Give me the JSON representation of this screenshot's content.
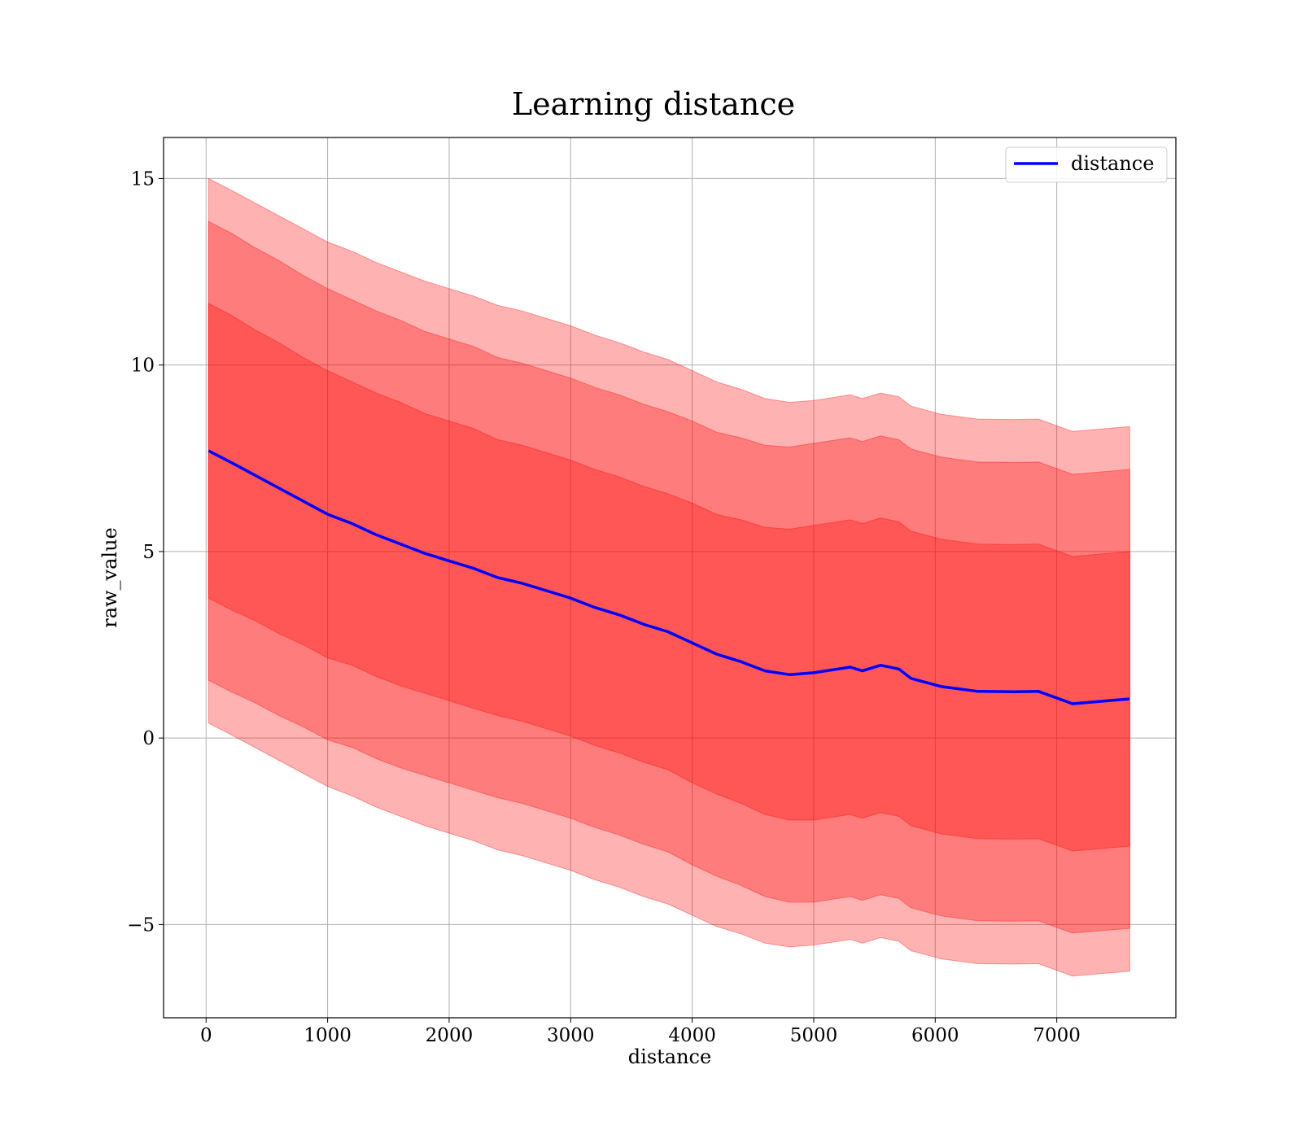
{
  "chart_data": {
    "type": "line",
    "title": "Learning distance",
    "xlabel": "distance",
    "ylabel": "raw_value",
    "xlim": [
      -350,
      7980
    ],
    "ylim": [
      -7.5,
      16.1
    ],
    "xticks": [
      0,
      1000,
      2000,
      3000,
      4000,
      5000,
      6000,
      7000
    ],
    "xtick_labels": [
      "0",
      "1000",
      "2000",
      "3000",
      "4000",
      "5000",
      "6000",
      "7000"
    ],
    "yticks": [
      -5,
      0,
      5,
      10,
      15
    ],
    "ytick_labels": [
      "−5",
      "0",
      "5",
      "10",
      "15"
    ],
    "grid": true,
    "legend": {
      "position": "top-right",
      "entries": [
        "distance"
      ]
    },
    "colors": {
      "line": "#0000ff",
      "band": "#ff0000",
      "band_alpha": 0.3
    },
    "series": [
      {
        "name": "distance",
        "x": [
          20,
          200,
          400,
          600,
          800,
          1000,
          1200,
          1400,
          1600,
          1800,
          2000,
          2200,
          2400,
          2600,
          2800,
          3000,
          3200,
          3400,
          3600,
          3800,
          4000,
          4200,
          4400,
          4600,
          4800,
          5000,
          5200,
          5300,
          5400,
          5550,
          5700,
          5800,
          6050,
          6350,
          6650,
          6850,
          7130,
          7600
        ],
        "y": [
          7.7,
          7.4,
          7.05,
          6.7,
          6.35,
          6.0,
          5.75,
          5.45,
          5.2,
          4.95,
          4.75,
          4.55,
          4.3,
          4.15,
          3.95,
          3.75,
          3.5,
          3.3,
          3.05,
          2.85,
          2.55,
          2.25,
          2.05,
          1.8,
          1.7,
          1.75,
          1.85,
          1.9,
          1.8,
          1.95,
          1.85,
          1.6,
          1.38,
          1.25,
          1.24,
          1.25,
          0.92,
          1.05
        ]
      }
    ],
    "bands": [
      {
        "k": 1,
        "offset": [
          3.95,
          3.95,
          3.9,
          3.9,
          3.85,
          3.85,
          3.8,
          3.8,
          3.8,
          3.75,
          3.75,
          3.75,
          3.7,
          3.7,
          3.7,
          3.7,
          3.7,
          3.7,
          3.7,
          3.7,
          3.75,
          3.75,
          3.8,
          3.85,
          3.9,
          3.95,
          3.95,
          3.95,
          3.95,
          3.95,
          3.95,
          3.95,
          3.95,
          3.95,
          3.95,
          3.95,
          3.95,
          3.95
        ]
      },
      {
        "k": 2,
        "offset": [
          6.15,
          6.15,
          6.1,
          6.1,
          6.05,
          6.05,
          6.0,
          6.0,
          6.0,
          5.95,
          5.95,
          5.95,
          5.9,
          5.9,
          5.9,
          5.9,
          5.9,
          5.9,
          5.9,
          5.9,
          5.95,
          5.95,
          6.0,
          6.05,
          6.1,
          6.15,
          6.15,
          6.15,
          6.15,
          6.15,
          6.15,
          6.15,
          6.15,
          6.15,
          6.15,
          6.15,
          6.15,
          6.15
        ]
      },
      {
        "k": 3,
        "offset": [
          7.3,
          7.3,
          7.3,
          7.3,
          7.3,
          7.3,
          7.3,
          7.3,
          7.3,
          7.3,
          7.3,
          7.3,
          7.3,
          7.3,
          7.3,
          7.3,
          7.3,
          7.3,
          7.3,
          7.3,
          7.3,
          7.3,
          7.3,
          7.3,
          7.3,
          7.3,
          7.3,
          7.3,
          7.3,
          7.3,
          7.3,
          7.3,
          7.3,
          7.3,
          7.3,
          7.3,
          7.3,
          7.3
        ]
      }
    ]
  }
}
